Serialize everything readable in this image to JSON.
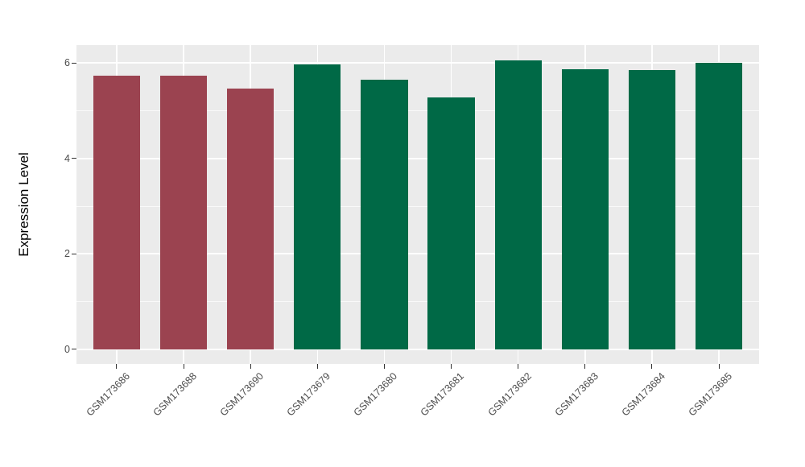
{
  "chart_data": {
    "type": "bar",
    "title": "",
    "xlabel": "",
    "ylabel": "Expression Level",
    "categories": [
      "GSM173686",
      "GSM173688",
      "GSM173690",
      "GSM173679",
      "GSM173680",
      "GSM173681",
      "GSM173682",
      "GSM173683",
      "GSM173684",
      "GSM173685"
    ],
    "values": [
      5.74,
      5.73,
      5.47,
      5.97,
      5.65,
      5.29,
      6.06,
      5.87,
      5.86,
      6.0
    ],
    "bar_colors": [
      "#9B4350",
      "#9B4350",
      "#9B4350",
      "#006946",
      "#006946",
      "#006946",
      "#006946",
      "#006946",
      "#006946",
      "#006946"
    ],
    "yticks": [
      0,
      2,
      4,
      6
    ],
    "yticks_minor": [
      1,
      3,
      5
    ],
    "ylim": [
      -0.31,
      6.38
    ],
    "legend_position": "none",
    "grid": true,
    "x_tick_rotation_deg": -45,
    "bar_width_fraction": 0.7,
    "category_edge_padding": 0.6,
    "colors": {
      "panel_background": "#EBEBEB",
      "gridline": "#FFFFFF",
      "tick_label": "#4D4D4D",
      "tick_mark": "#333333",
      "axis_title": "#000000",
      "figure_background": "#FFFFFF"
    }
  }
}
